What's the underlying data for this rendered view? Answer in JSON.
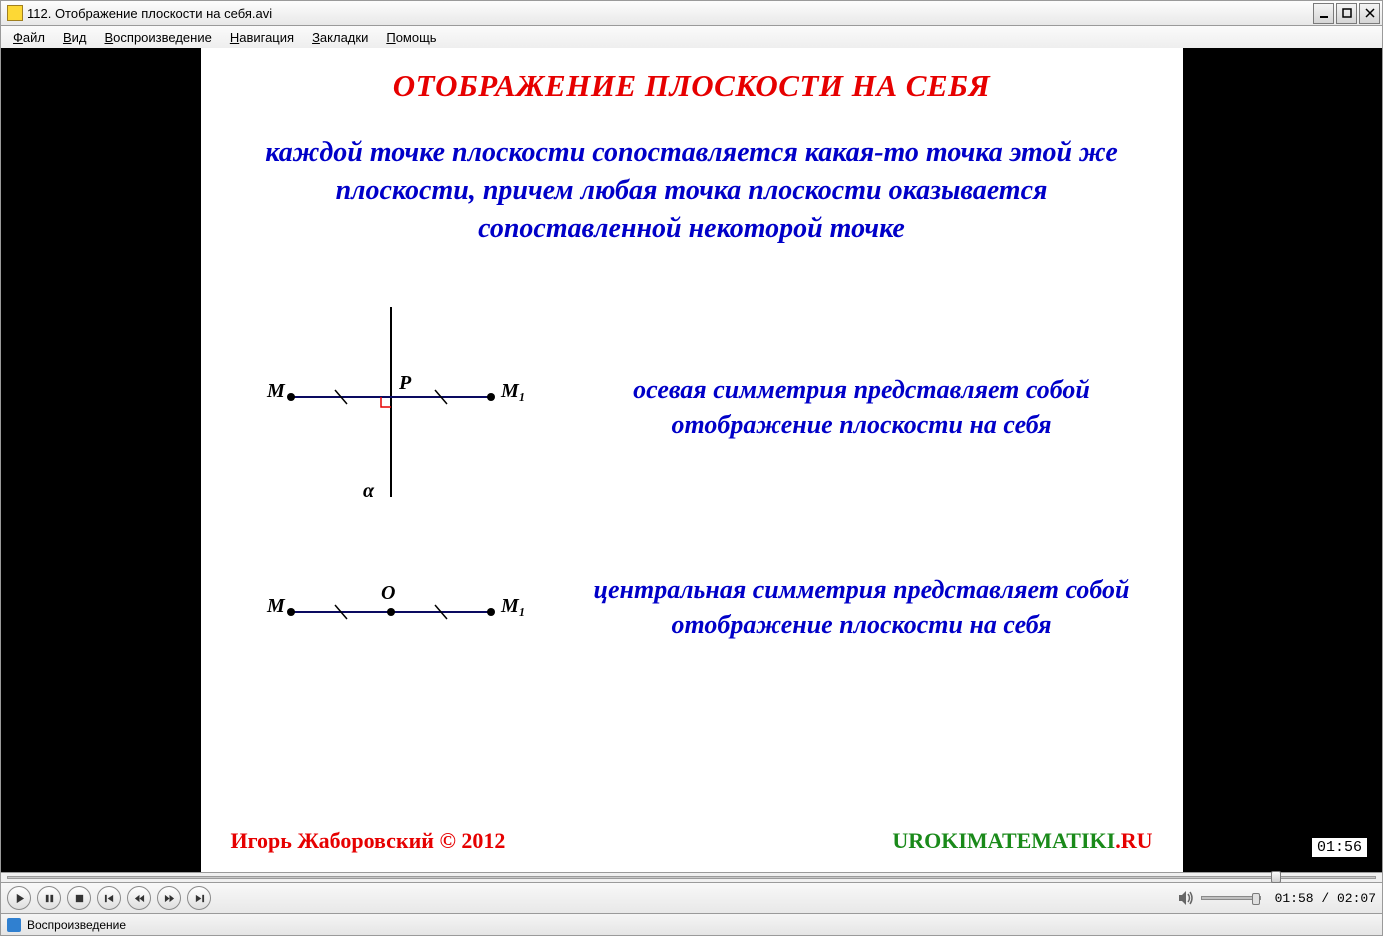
{
  "window": {
    "title": "112. Отображение плоскости на себя.avi"
  },
  "menu": {
    "file": {
      "ul": "Ф",
      "rest": "айл"
    },
    "view": {
      "ul": "В",
      "rest": "ид"
    },
    "play": {
      "ul": "В",
      "rest": "оспроизведение"
    },
    "nav": {
      "ul": "Н",
      "rest": "авигация"
    },
    "bookmk": {
      "ul": "З",
      "rest": "акладки"
    },
    "help": {
      "ul": "П",
      "rest": "омощь"
    }
  },
  "slide": {
    "title": "ОТОБРАЖЕНИЕ ПЛОСКОСТИ НА СЕБЯ",
    "definition": "каждой точке плоскости сопоставляется какая-то точка этой же плоскости, причем любая точка плоскости оказывается сопоставленной некоторой точке",
    "row1_text": "осевая симметрия представляет собой отображение плоскости на себя",
    "row2_text": "центральная симметрия представляет собой отображение плоскости на себя",
    "author": "Игорь Жаборовский © 2012",
    "site_green": "UROKI",
    "site_green2": "MATEMATIKI",
    "site_red": ".RU",
    "diag1": {
      "M": "M",
      "P": "P",
      "M1": "M₁",
      "alpha": "α"
    },
    "diag2": {
      "M": "M",
      "O": "O",
      "M1": "M₁"
    },
    "colors": {
      "text_red": "#e60000",
      "text_blue": "#0000c8",
      "line": "#0a0a60",
      "green": "#1a8a1a"
    }
  },
  "overlay_time": "01:56",
  "playback": {
    "position_pct": 93,
    "current": "01:58",
    "total": "02:07",
    "sep": " / "
  },
  "status": "Воспроизведение"
}
